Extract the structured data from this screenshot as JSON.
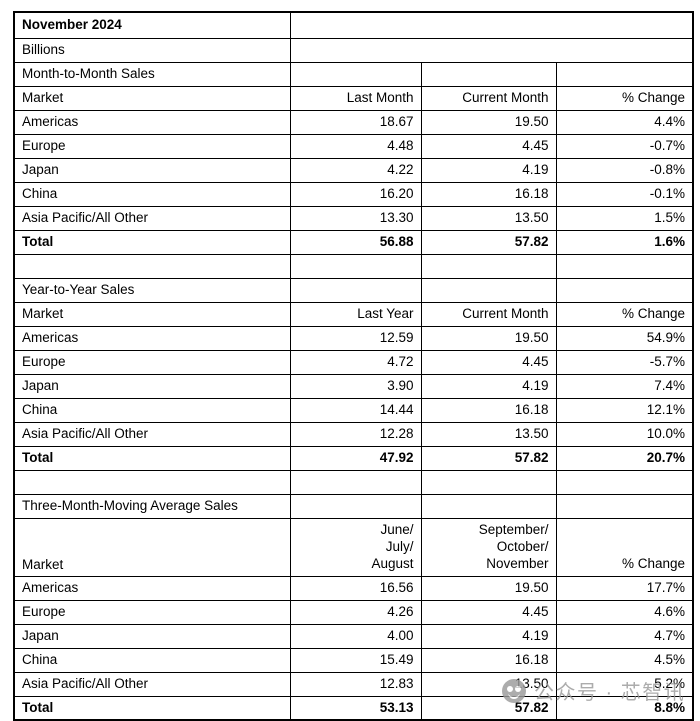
{
  "title": "November 2024",
  "unit_label": "Billions",
  "colors": {
    "text": "#000000",
    "border": "#000000",
    "background": "#ffffff",
    "watermark": "#9a9a9a"
  },
  "sections": [
    {
      "label": "Month-to-Month Sales",
      "headers": [
        "Market",
        "Last Month",
        "Current Month",
        "% Change"
      ],
      "rows": [
        {
          "market": "Americas",
          "values": [
            "18.67",
            "19.50",
            "4.4%"
          ],
          "is_total": false
        },
        {
          "market": "Europe",
          "values": [
            "4.48",
            "4.45",
            "-0.7%"
          ],
          "is_total": false
        },
        {
          "market": "Japan",
          "values": [
            "4.22",
            "4.19",
            "-0.8%"
          ],
          "is_total": false
        },
        {
          "market": "China",
          "values": [
            "16.20",
            "16.18",
            "-0.1%"
          ],
          "is_total": false
        },
        {
          "market": "Asia Pacific/All Other",
          "values": [
            "13.30",
            "13.50",
            "1.5%"
          ],
          "is_total": false
        },
        {
          "market": "Total",
          "values": [
            "56.88",
            "57.82",
            "1.6%"
          ],
          "is_total": true
        }
      ]
    },
    {
      "label": "Year-to-Year Sales",
      "headers": [
        "Market",
        "Last Year",
        "Current Month",
        "% Change"
      ],
      "rows": [
        {
          "market": "Americas",
          "values": [
            "12.59",
            "19.50",
            "54.9%"
          ],
          "is_total": false
        },
        {
          "market": "Europe",
          "values": [
            "4.72",
            "4.45",
            "-5.7%"
          ],
          "is_total": false
        },
        {
          "market": "Japan",
          "values": [
            "3.90",
            "4.19",
            "7.4%"
          ],
          "is_total": false
        },
        {
          "market": "China",
          "values": [
            "14.44",
            "16.18",
            "12.1%"
          ],
          "is_total": false
        },
        {
          "market": "Asia Pacific/All Other",
          "values": [
            "12.28",
            "13.50",
            "10.0%"
          ],
          "is_total": false
        },
        {
          "market": "Total",
          "values": [
            "47.92",
            "57.82",
            "20.7%"
          ],
          "is_total": true
        }
      ]
    },
    {
      "label": "Three-Month-Moving Average Sales",
      "headers": [
        "Market",
        "June/\nJuly/\nAugust",
        "September/\nOctober/\nNovember",
        "% Change"
      ],
      "tall_header": true,
      "rows": [
        {
          "market": "Americas",
          "values": [
            "16.56",
            "19.50",
            "17.7%"
          ],
          "is_total": false
        },
        {
          "market": "Europe",
          "values": [
            "4.26",
            "4.45",
            "4.6%"
          ],
          "is_total": false
        },
        {
          "market": "Japan",
          "values": [
            "4.00",
            "4.19",
            "4.7%"
          ],
          "is_total": false
        },
        {
          "market": "China",
          "values": [
            "15.49",
            "16.18",
            "4.5%"
          ],
          "is_total": false
        },
        {
          "market": "Asia Pacific/All Other",
          "values": [
            "12.83",
            "13.50",
            "5.2%"
          ],
          "is_total": false
        },
        {
          "market": "Total",
          "values": [
            "53.13",
            "57.82",
            "8.8%"
          ],
          "is_total": true
        }
      ]
    }
  ],
  "watermark": {
    "text": "公众号 · 芯智讯",
    "logo": "watermark-logo"
  }
}
